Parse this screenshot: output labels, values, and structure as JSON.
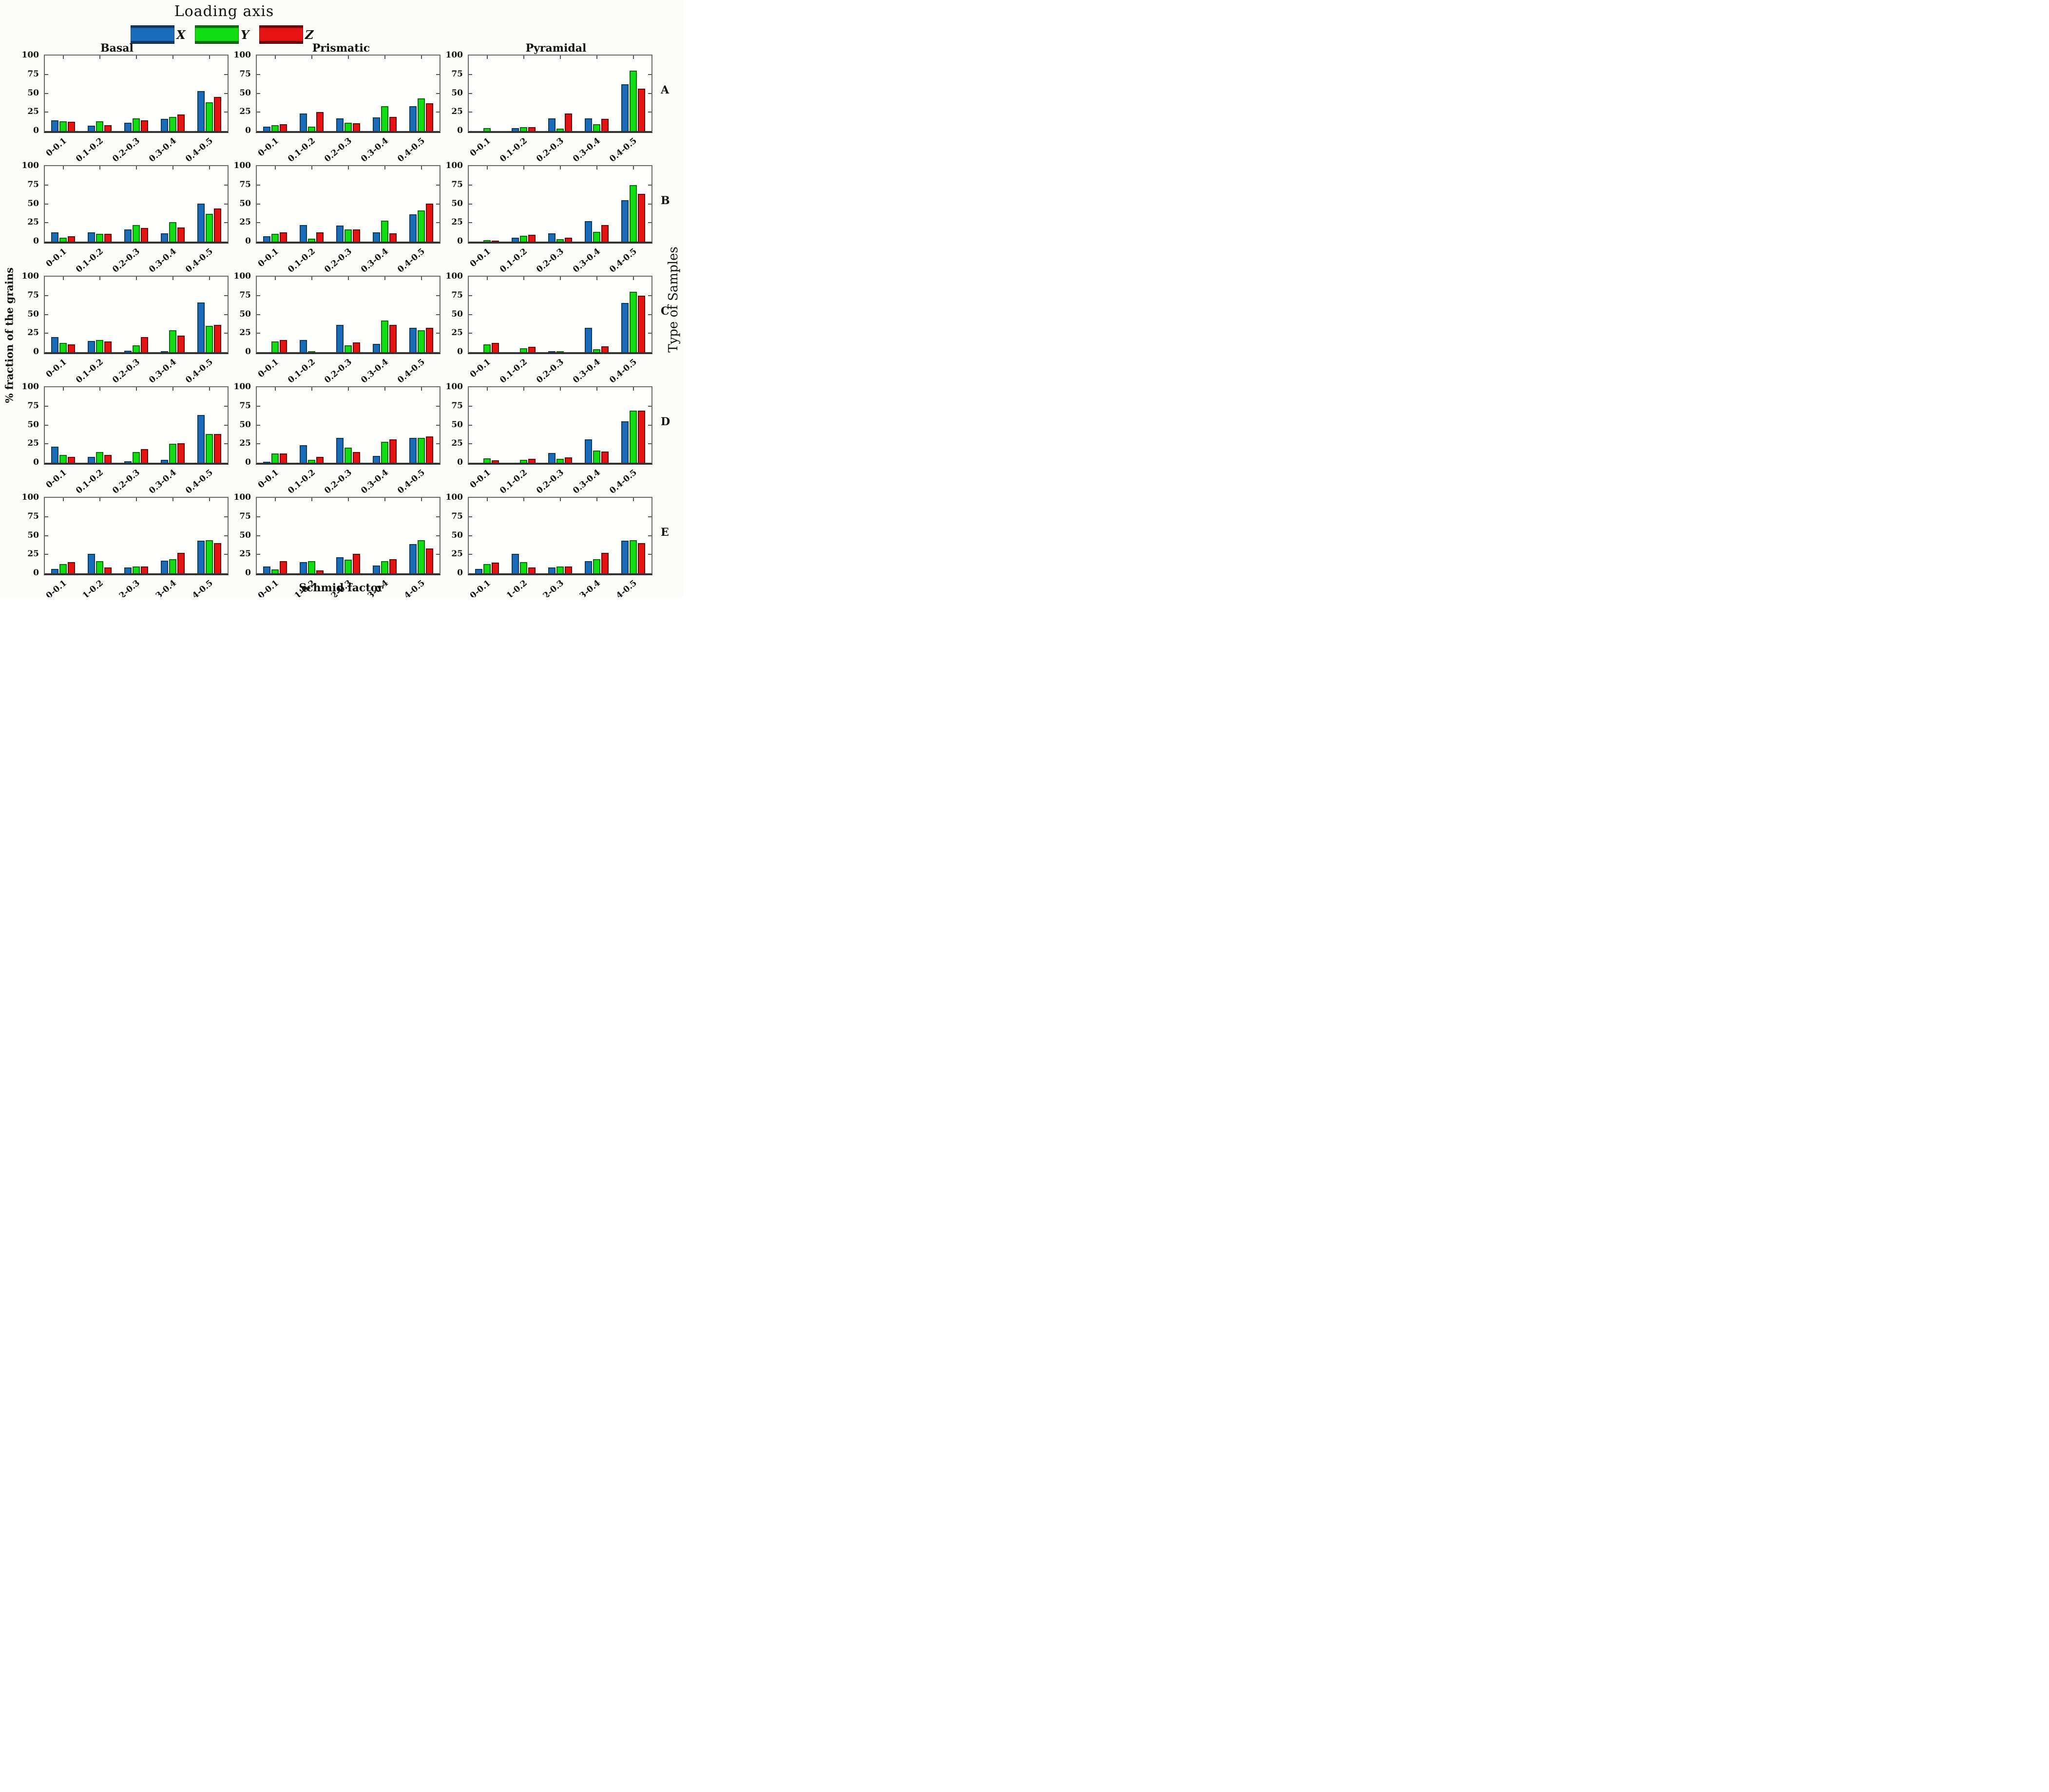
{
  "chart_data": {
    "type": "bar",
    "layout": "grid-5x3",
    "legend": {
      "title": "Loading axis",
      "position": "top",
      "series": [
        {
          "name": "X",
          "color": "#1a6cb8",
          "edge": "#0c3a63"
        },
        {
          "name": "Y",
          "color": "#12dc12",
          "edge": "#0a700a"
        },
        {
          "name": "Z",
          "color": "#e41414",
          "edge": "#700808"
        }
      ]
    },
    "col_titles": [
      "Basal",
      "Prismatic",
      "Pyramidal"
    ],
    "row_labels": [
      "A",
      "B",
      "C",
      "D",
      "E"
    ],
    "categories": [
      "0-0.1",
      "0.1-0.2",
      "0.2-0.3",
      "0.3-0.4",
      "0.4-0.5"
    ],
    "ylim": [
      0,
      100
    ],
    "yticks": [
      0,
      25,
      50,
      75,
      100
    ],
    "ylabel": "% fraction of the grains",
    "xlabel": "Schmid factor",
    "right_label": "Type of Samples",
    "grid": false,
    "subplots": [
      {
        "row": "A",
        "col": "Basal",
        "series": [
          {
            "name": "X",
            "values": [
              14,
              7,
              11,
              16,
              53
            ]
          },
          {
            "name": "Y",
            "values": [
              13,
              13,
              17,
              19,
              38
            ]
          },
          {
            "name": "Z",
            "values": [
              12,
              8,
              14,
              22,
              45
            ]
          }
        ]
      },
      {
        "row": "A",
        "col": "Prismatic",
        "series": [
          {
            "name": "X",
            "values": [
              6,
              23,
              17,
              18,
              33
            ]
          },
          {
            "name": "Y",
            "values": [
              8,
              6,
              11,
              33,
              43
            ]
          },
          {
            "name": "Z",
            "values": [
              9,
              25,
              10,
              19,
              37
            ]
          }
        ]
      },
      {
        "row": "A",
        "col": "Pyramidal",
        "series": [
          {
            "name": "X",
            "values": [
              0,
              4,
              17,
              17,
              62
            ]
          },
          {
            "name": "Y",
            "values": [
              4,
              5,
              3,
              9,
              80
            ]
          },
          {
            "name": "Z",
            "values": [
              0,
              5,
              23,
              16,
              56
            ]
          }
        ]
      },
      {
        "row": "B",
        "col": "Basal",
        "series": [
          {
            "name": "X",
            "values": [
              12,
              12,
              16,
              11,
              50
            ]
          },
          {
            "name": "Y",
            "values": [
              5,
              10,
              22,
              26,
              37
            ]
          },
          {
            "name": "Z",
            "values": [
              7,
              10,
              18,
              19,
              44
            ]
          }
        ]
      },
      {
        "row": "B",
        "col": "Prismatic",
        "series": [
          {
            "name": "X",
            "values": [
              7,
              22,
              21,
              12,
              36
            ]
          },
          {
            "name": "Y",
            "values": [
              10,
              4,
              16,
              28,
              41
            ]
          },
          {
            "name": "Z",
            "values": [
              12,
              12,
              16,
              11,
              50
            ]
          }
        ]
      },
      {
        "row": "B",
        "col": "Pyramidal",
        "series": [
          {
            "name": "X",
            "values": [
              0,
              5,
              11,
              27,
              55
            ]
          },
          {
            "name": "Y",
            "values": [
              2,
              8,
              3,
              13,
              75
            ]
          },
          {
            "name": "Z",
            "values": [
              1,
              9,
              5,
              22,
              63
            ]
          }
        ]
      },
      {
        "row": "C",
        "col": "Basal",
        "series": [
          {
            "name": "X",
            "values": [
              20,
              15,
              2,
              1,
              66
            ]
          },
          {
            "name": "Y",
            "values": [
              12,
              16,
              9,
              29,
              35
            ]
          },
          {
            "name": "Z",
            "values": [
              10,
              14,
              20,
              22,
              36
            ]
          }
        ]
      },
      {
        "row": "C",
        "col": "Prismatic",
        "series": [
          {
            "name": "X",
            "values": [
              0,
              16,
              36,
              11,
              32
            ]
          },
          {
            "name": "Y",
            "values": [
              14,
              1,
              9,
              42,
              29
            ]
          },
          {
            "name": "Z",
            "values": [
              16,
              0,
              13,
              36,
              32
            ]
          }
        ]
      },
      {
        "row": "C",
        "col": "Pyramidal",
        "series": [
          {
            "name": "X",
            "values": [
              0,
              0,
              1,
              32,
              65
            ]
          },
          {
            "name": "Y",
            "values": [
              10,
              5,
              1,
              4,
              80
            ]
          },
          {
            "name": "Z",
            "values": [
              12,
              7,
              0,
              8,
              75
            ]
          }
        ]
      },
      {
        "row": "D",
        "col": "Basal",
        "series": [
          {
            "name": "X",
            "values": [
              21,
              8,
              2,
              4,
              63
            ]
          },
          {
            "name": "Y",
            "values": [
              10,
              14,
              14,
              25,
              38
            ]
          },
          {
            "name": "Z",
            "values": [
              8,
              10,
              18,
              26,
              38
            ]
          }
        ]
      },
      {
        "row": "D",
        "col": "Prismatic",
        "series": [
          {
            "name": "X",
            "values": [
              1,
              23,
              33,
              9,
              33
            ]
          },
          {
            "name": "Y",
            "values": [
              12,
              4,
              20,
              28,
              33
            ]
          },
          {
            "name": "Z",
            "values": [
              12,
              8,
              14,
              31,
              35
            ]
          }
        ]
      },
      {
        "row": "D",
        "col": "Pyramidal",
        "series": [
          {
            "name": "X",
            "values": [
              0,
              0,
              13,
              31,
              55
            ]
          },
          {
            "name": "Y",
            "values": [
              6,
              4,
              5,
              16,
              69
            ]
          },
          {
            "name": "Z",
            "values": [
              3,
              5,
              7,
              15,
              69
            ]
          }
        ]
      },
      {
        "row": "E",
        "col": "Basal",
        "series": [
          {
            "name": "X",
            "values": [
              6,
              26,
              8,
              17,
              43
            ]
          },
          {
            "name": "Y",
            "values": [
              12,
              16,
              9,
              19,
              44
            ]
          },
          {
            "name": "Z",
            "values": [
              15,
              8,
              9,
              27,
              40
            ]
          }
        ]
      },
      {
        "row": "E",
        "col": "Prismatic",
        "series": [
          {
            "name": "X",
            "values": [
              9,
              15,
              21,
              10,
              39
            ]
          },
          {
            "name": "Y",
            "values": [
              5,
              16,
              18,
              16,
              44
            ]
          },
          {
            "name": "Z",
            "values": [
              16,
              4,
              26,
              19,
              33
            ]
          }
        ]
      },
      {
        "row": "E",
        "col": "Pyramidal",
        "series": [
          {
            "name": "X",
            "values": [
              6,
              26,
              8,
              16,
              43
            ]
          },
          {
            "name": "Y",
            "values": [
              12,
              15,
              9,
              19,
              44
            ]
          },
          {
            "name": "Z",
            "values": [
              14,
              8,
              9,
              27,
              40
            ]
          }
        ]
      }
    ]
  }
}
